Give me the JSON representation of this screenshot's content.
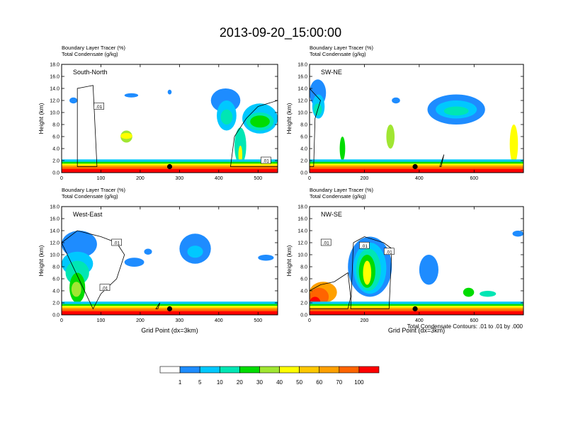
{
  "figure": {
    "title": "2013-09-20_15:00:00",
    "colorbar": {
      "colors": [
        "#ffffff",
        "#1e8cff",
        "#00c8ff",
        "#00e6b4",
        "#00dc00",
        "#a0e632",
        "#ffff00",
        "#ffc800",
        "#ffa000",
        "#ff6400",
        "#ff0000"
      ],
      "labels": [
        "1",
        "5",
        "10",
        "20",
        "30",
        "40",
        "50",
        "60",
        "70",
        "100"
      ]
    },
    "contour_note": "Total Condensate Contours: .01 to .01 by .000"
  },
  "chart_data": [
    {
      "type": "heatmap",
      "panel": "South-North",
      "legend_lines": [
        "Boundary Layer Tracer   (%)",
        "Total Condensate   (g/kg)"
      ],
      "ylabel": "Height (km)",
      "xlabel": "",
      "xlim": [
        0,
        550
      ],
      "ylim": [
        0,
        18
      ],
      "x_ticks": [
        "0",
        "100",
        "200",
        "300",
        "400",
        "500"
      ],
      "y_ticks": [
        "0.0",
        "2.0",
        "4.0",
        "6.0",
        "8.0",
        "10.0",
        "12.0",
        "14.0",
        "16.0",
        "18.0"
      ],
      "contour_labels": [
        ".01",
        ".01"
      ],
      "marker": {
        "x": 275,
        "y": 1.0
      }
    },
    {
      "type": "heatmap",
      "panel": "SW-NE",
      "legend_lines": [
        "Boundary Layer Tracer   (%)",
        "Total Condensate   (g/kg)"
      ],
      "ylabel": "Height (km)",
      "xlabel": "",
      "xlim": [
        0,
        780
      ],
      "ylim": [
        0,
        18
      ],
      "x_ticks": [
        "0",
        "200",
        "400",
        "600"
      ],
      "y_ticks": [
        "0.0",
        "2.0",
        "4.0",
        "6.0",
        "8.0",
        "10.0",
        "12.0",
        "14.0",
        "16.0",
        "18.0"
      ],
      "contour_labels": [],
      "marker": {
        "x": 385,
        "y": 1.0
      }
    },
    {
      "type": "heatmap",
      "panel": "West-East",
      "legend_lines": [
        "Boundary Layer Tracer   (%)",
        "Total Condensate   (g/kg)"
      ],
      "ylabel": "Height (km)",
      "xlabel": "Grid Point (dx=3km)",
      "xlim": [
        0,
        550
      ],
      "ylim": [
        0,
        18
      ],
      "x_ticks": [
        "0",
        "100",
        "200",
        "300",
        "400",
        "500"
      ],
      "y_ticks": [
        "0.0",
        "2.0",
        "4.0",
        "6.0",
        "8.0",
        "10.0",
        "12.0",
        "14.0",
        "16.0",
        "18.0"
      ],
      "contour_labels": [
        ".01",
        ".01"
      ],
      "marker": {
        "x": 275,
        "y": 1.0
      }
    },
    {
      "type": "heatmap",
      "panel": "NW-SE",
      "legend_lines": [
        "Boundary Layer Tracer   (%)",
        "Total Condensate   (g/kg)"
      ],
      "ylabel": "Height (km)",
      "xlabel": "Grid Point (dx=3km)",
      "xlim": [
        0,
        780
      ],
      "ylim": [
        0,
        18
      ],
      "x_ticks": [
        "0",
        "200",
        "400",
        "600"
      ],
      "y_ticks": [
        "0.0",
        "2.0",
        "4.0",
        "6.0",
        "8.0",
        "10.0",
        "12.0",
        "14.0",
        "16.0",
        "18.0"
      ],
      "contour_labels": [
        ".01",
        ".01",
        ".01"
      ],
      "marker": {
        "x": 385,
        "y": 1.0
      }
    }
  ]
}
